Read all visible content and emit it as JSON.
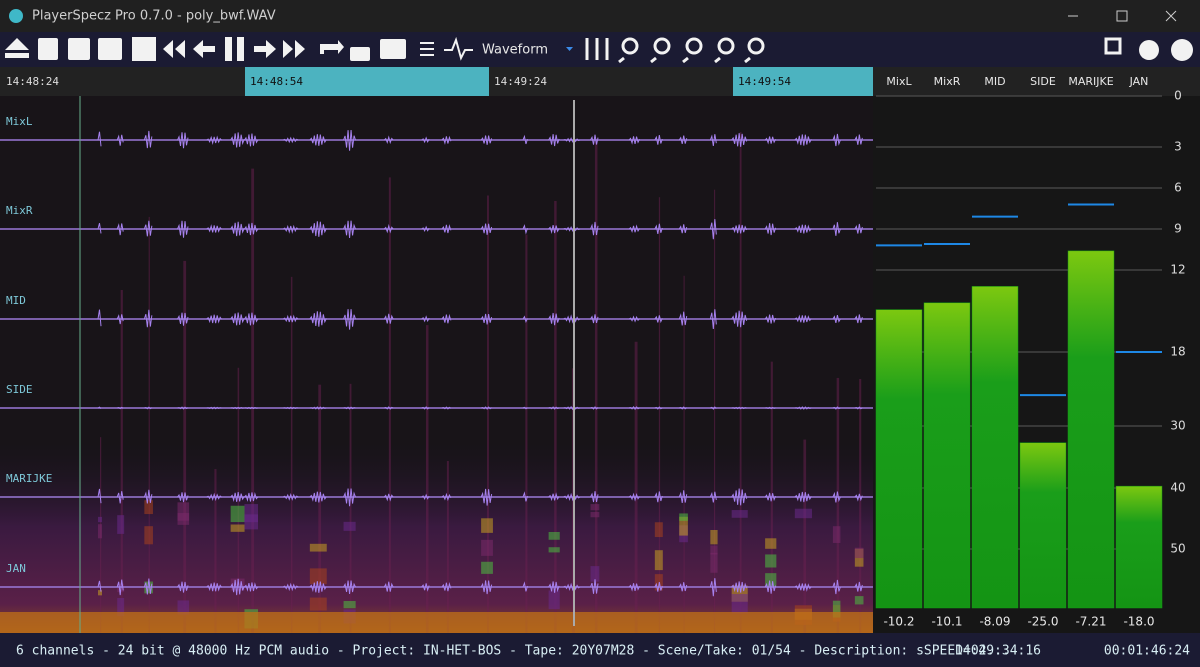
{
  "window": {
    "title": "PlayerSpecz Pro 0.7.0 - poly_bwf.WAV"
  },
  "toolbar": {
    "view_mode": "Waveform"
  },
  "timeline": {
    "times": [
      "14:48:24",
      "14:48:54",
      "14:49:24",
      "14:49:54"
    ]
  },
  "channels": [
    "MixL",
    "MixR",
    "MID",
    "SIDE",
    "MARIJKE",
    "JAN"
  ],
  "meters": {
    "type": "bar",
    "categories": [
      "MixL",
      "MixR",
      "MID",
      "SIDE",
      "MARIJKE",
      "JAN"
    ],
    "values": [
      -10.2,
      -10.1,
      -8.09,
      -25.0,
      -7.21,
      -18.0
    ],
    "value_labels": [
      "-10.2",
      "-10.1",
      "-8.09",
      "-25.0",
      "-7.21",
      "-18.0"
    ],
    "levels": [
      -14.9,
      -14.4,
      -13.2,
      -32.7,
      -10.6,
      -39.7
    ],
    "yticks": [
      0,
      3,
      6,
      9,
      12,
      18,
      30,
      40,
      50
    ],
    "color": "#139c13",
    "peak_color": "#1e88e5"
  },
  "status": {
    "info": "6 channels - 24 bit @ 48000 Hz PCM audio - Project: IN-HET-BOS - Tape: 20Y07M28 - Scene/Take: 01/54 - Description: sSPEED=02...",
    "time": "14:49:34:16",
    "duration": "00:01:46:24"
  }
}
